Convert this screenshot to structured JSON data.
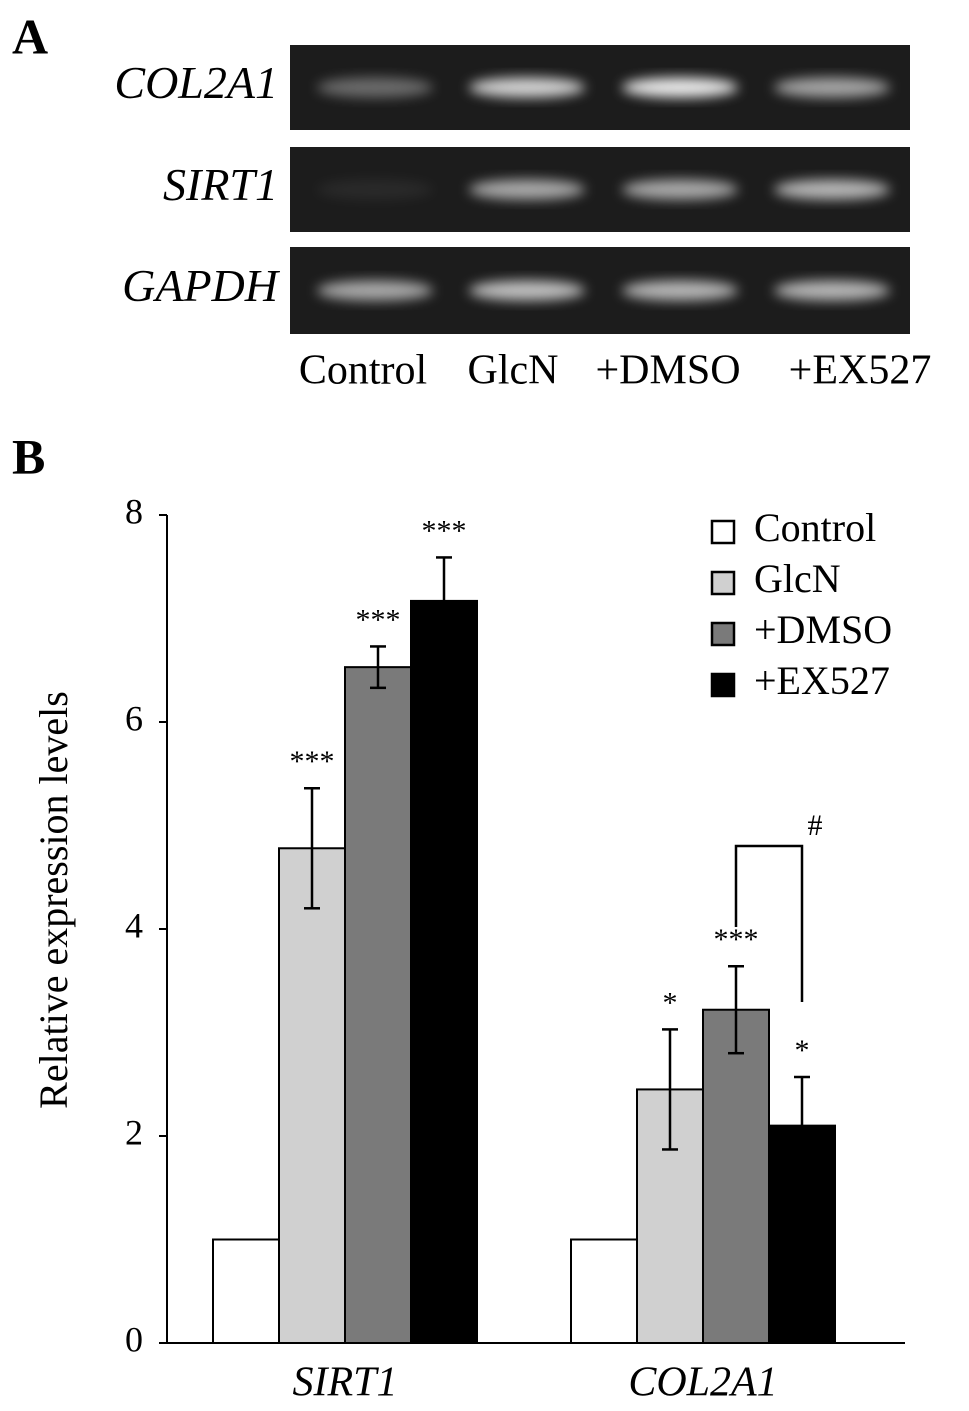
{
  "gel": {
    "label": "A",
    "genes": [
      "COL2A1",
      "SIRT1",
      "GAPDH"
    ],
    "lanes": [
      "Control",
      "GlcN",
      "+DMSO",
      "+EX527"
    ]
  },
  "chart_data": {
    "type": "bar",
    "panel_label": "B",
    "y_label": "Relative expression levels",
    "categories": [
      "SIRT1",
      "COL2A1"
    ],
    "series": [
      {
        "name": "Control",
        "color": "#ffffff",
        "values": [
          1,
          1
        ],
        "errors": [
          null,
          null
        ],
        "labels": [
          null,
          null
        ]
      },
      {
        "name": "GlcN",
        "color": "#d0d0d0",
        "values": [
          4.78,
          2.45
        ],
        "errors": [
          0.58,
          0.58
        ],
        "labels": [
          "***",
          "*"
        ]
      },
      {
        "name": "+DMSO",
        "color": "#7a7a7a",
        "values": [
          6.53,
          3.22
        ],
        "errors": [
          0.2,
          0.42
        ],
        "labels": [
          "***",
          "***"
        ]
      },
      {
        "name": "+EX527",
        "color": "#000000",
        "values": [
          7.17,
          2.1
        ],
        "errors": [
          0.42,
          0.47
        ],
        "labels": [
          "***",
          "*"
        ]
      }
    ],
    "bracket": {
      "label": "#"
    },
    "ylim": [
      0,
      8
    ],
    "yticks": [
      0,
      2,
      4,
      6,
      8
    ],
    "legend": "upper right"
  }
}
